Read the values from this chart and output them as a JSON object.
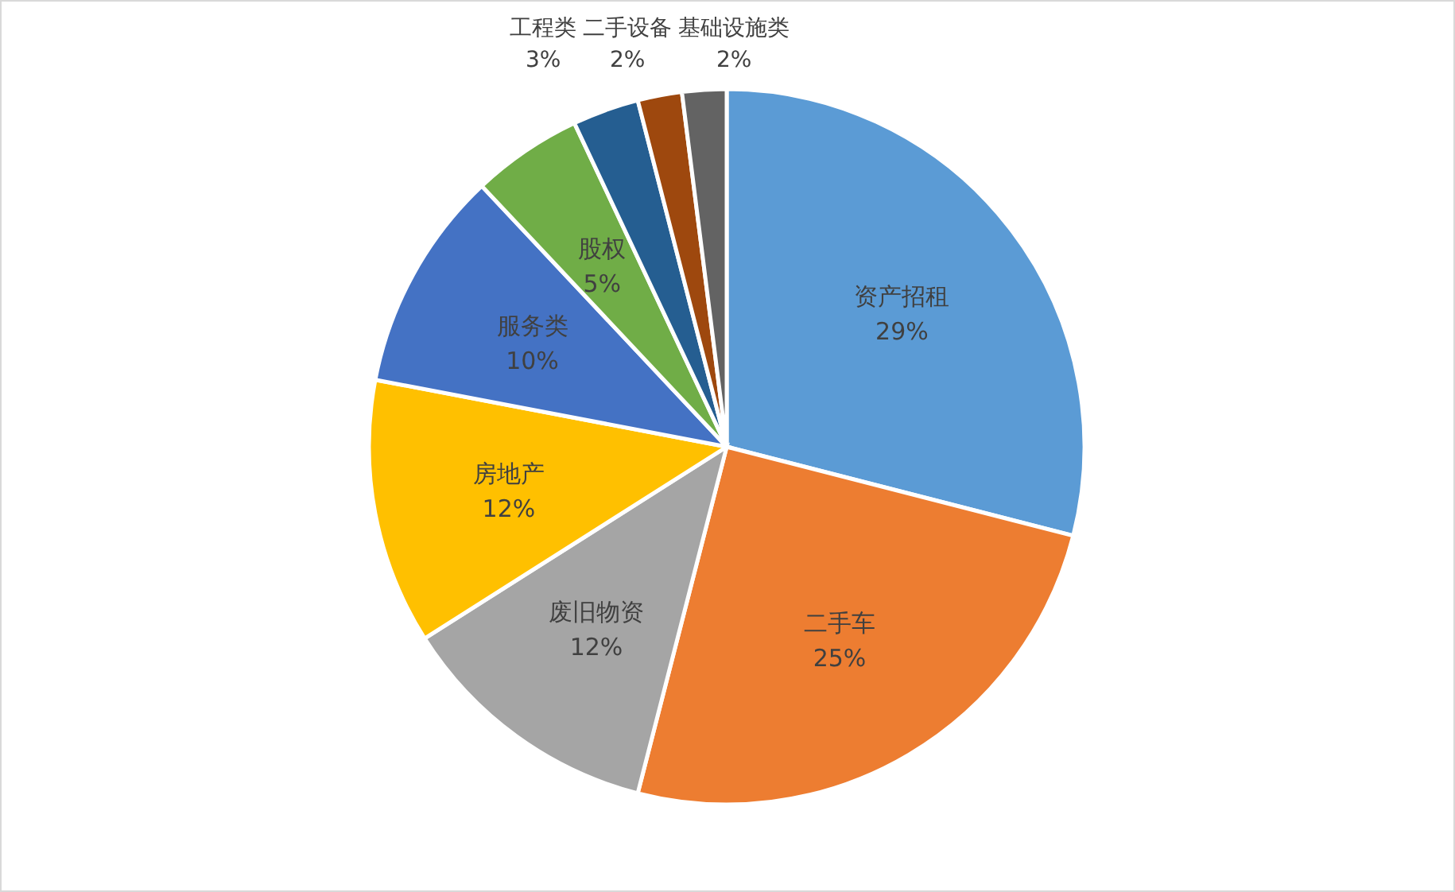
{
  "chart_data": {
    "type": "pie",
    "categories": [
      "资产招租",
      "二手车",
      "废旧物资",
      "房地产",
      "服务类",
      "股权",
      "工程类",
      "二手设备",
      "基础设施类"
    ],
    "values": [
      29,
      25,
      12,
      12,
      10,
      5,
      3,
      2,
      2
    ],
    "colors": [
      "#5b9bd5",
      "#ed7d31",
      "#a5a5a5",
      "#ffc000",
      "#4472c4",
      "#70ad47",
      "#255e91",
      "#9e480e",
      "#636363"
    ],
    "value_labels": [
      "29%",
      "25%",
      "12%",
      "12%",
      "10%",
      "5%",
      "3%",
      "2%",
      "2%"
    ]
  }
}
